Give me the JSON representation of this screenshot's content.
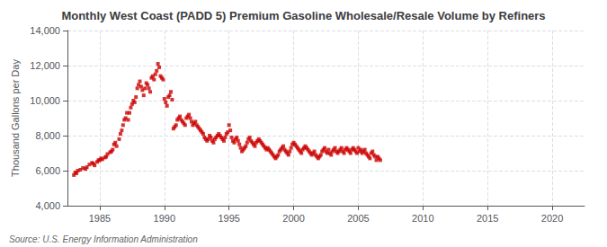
{
  "chart_data": {
    "type": "scatter",
    "title": "Monthly West Coast (PADD 5) Premium Gasoline Wholesale/Resale Volume by Refiners",
    "ylabel": "Thousand Gallons per Day",
    "annotations": [
      "Source: U.S. Energy Information Administration"
    ],
    "color": "#cc0000",
    "marker": "square",
    "grid": true,
    "xlim": [
      1982.5,
      2022.5
    ],
    "xticks": [
      1985,
      1990,
      1995,
      2000,
      2005,
      2010,
      2015,
      2020
    ],
    "ylim": [
      4000,
      14000
    ],
    "yticks": [
      {
        "value": 4000,
        "label": "4,000"
      },
      {
        "value": 6000,
        "label": "6,000"
      },
      {
        "value": 8000,
        "label": "8,000"
      },
      {
        "value": 10000,
        "label": "10,000"
      },
      {
        "value": 12000,
        "label": "12,000"
      },
      {
        "value": 14000,
        "label": "14,000"
      }
    ],
    "x": [
      1983.0,
      1983.1,
      1983.2,
      1983.3,
      1983.5,
      1983.7,
      1983.9,
      1984.0,
      1984.2,
      1984.4,
      1984.5,
      1984.6,
      1984.8,
      1984.9,
      1985.0,
      1985.1,
      1985.2,
      1985.4,
      1985.5,
      1985.6,
      1985.8,
      1985.9,
      1986.0,
      1986.1,
      1986.2,
      1986.3,
      1986.5,
      1986.6,
      1986.7,
      1986.8,
      1986.9,
      1987.0,
      1987.1,
      1987.2,
      1987.3,
      1987.4,
      1987.5,
      1987.6,
      1987.7,
      1987.8,
      1987.9,
      1988.0,
      1988.1,
      1988.2,
      1988.3,
      1988.4,
      1988.5,
      1988.6,
      1988.7,
      1988.8,
      1988.9,
      1989.0,
      1989.1,
      1989.2,
      1989.3,
      1989.4,
      1989.5,
      1989.6,
      1989.7,
      1989.8,
      1989.9,
      1990.0,
      1990.1,
      1990.2,
      1990.3,
      1990.4,
      1990.5,
      1990.6,
      1990.7,
      1990.8,
      1990.9,
      1991.0,
      1991.1,
      1991.2,
      1991.3,
      1991.4,
      1991.5,
      1991.6,
      1991.7,
      1991.8,
      1991.9,
      1992.0,
      1992.1,
      1992.2,
      1992.3,
      1992.4,
      1992.5,
      1992.6,
      1992.7,
      1992.8,
      1992.9,
      1993.0,
      1993.1,
      1993.2,
      1993.3,
      1993.4,
      1993.5,
      1993.6,
      1993.7,
      1993.8,
      1993.9,
      1994.0,
      1994.1,
      1994.2,
      1994.3,
      1994.4,
      1994.5,
      1994.6,
      1994.7,
      1994.8,
      1994.9,
      1995.0,
      1995.1,
      1995.2,
      1995.3,
      1995.4,
      1995.5,
      1995.6,
      1995.7,
      1995.8,
      1995.9,
      1996.0,
      1996.1,
      1996.2,
      1996.3,
      1996.4,
      1996.5,
      1996.6,
      1996.7,
      1996.8,
      1996.9,
      1997.0,
      1997.1,
      1997.2,
      1997.3,
      1997.4,
      1997.5,
      1997.6,
      1997.7,
      1997.8,
      1997.9,
      1998.0,
      1998.1,
      1998.2,
      1998.3,
      1998.4,
      1998.5,
      1998.6,
      1998.7,
      1998.8,
      1998.9,
      1999.0,
      1999.1,
      1999.2,
      1999.3,
      1999.4,
      1999.5,
      1999.6,
      1999.7,
      1999.8,
      1999.9,
      2000.0,
      2000.1,
      2000.2,
      2000.3,
      2000.4,
      2000.5,
      2000.6,
      2000.7,
      2000.8,
      2000.9,
      2001.0,
      2001.1,
      2001.2,
      2001.3,
      2001.4,
      2001.5,
      2001.6,
      2001.7,
      2001.8,
      2001.9,
      2002.0,
      2002.1,
      2002.2,
      2002.3,
      2002.4,
      2002.5,
      2002.6,
      2002.7,
      2002.8,
      2002.9,
      2003.0,
      2003.1,
      2003.2,
      2003.3,
      2003.4,
      2003.5,
      2003.6,
      2003.7,
      2003.8,
      2003.9,
      2004.0,
      2004.1,
      2004.2,
      2004.3,
      2004.4,
      2004.5,
      2004.6,
      2004.7,
      2004.8,
      2004.9,
      2005.0,
      2005.1,
      2005.2,
      2005.3,
      2005.4,
      2005.5,
      2005.6,
      2005.7,
      2005.8,
      2005.9,
      2006.0,
      2006.1,
      2006.2,
      2006.3,
      2006.4,
      2006.5,
      2006.6,
      2006.7
    ],
    "values": [
      5750,
      5900,
      5850,
      6000,
      6050,
      6150,
      6100,
      6200,
      6350,
      6450,
      6400,
      6300,
      6500,
      6600,
      6600,
      6700,
      6650,
      6750,
      6800,
      6950,
      7050,
      7100,
      7200,
      7500,
      7600,
      7400,
      7800,
      8100,
      8300,
      8600,
      8900,
      9000,
      9300,
      8900,
      9300,
      9600,
      9800,
      10000,
      9900,
      10200,
      10700,
      10900,
      11100,
      10800,
      10600,
      10300,
      10700,
      11000,
      10900,
      10700,
      10500,
      11300,
      11400,
      11200,
      11500,
      11700,
      12100,
      11900,
      11400,
      11300,
      11200,
      10100,
      9900,
      9700,
      10200,
      10300,
      10500,
      10050,
      8400,
      8500,
      8600,
      8900,
      9000,
      9100,
      8900,
      8800,
      8700,
      8600,
      9000,
      9100,
      9200,
      9000,
      8800,
      8600,
      8700,
      8800,
      8600,
      8500,
      8400,
      8300,
      8200,
      8100,
      7900,
      7800,
      7700,
      7800,
      8000,
      7900,
      7700,
      7600,
      7800,
      7900,
      8000,
      8100,
      8000,
      7900,
      7800,
      7700,
      7900,
      8100,
      8200,
      8600,
      8300,
      7900,
      7700,
      7600,
      7800,
      7900,
      7700,
      7500,
      7300,
      7100,
      7200,
      7300,
      7400,
      7600,
      7800,
      7900,
      7700,
      7600,
      7500,
      7400,
      7600,
      7700,
      7800,
      7700,
      7600,
      7500,
      7400,
      7300,
      7200,
      7300,
      7200,
      7100,
      7000,
      6900,
      6800,
      6700,
      6800,
      6900,
      7100,
      7200,
      7300,
      7400,
      7200,
      7100,
      7000,
      6900,
      7100,
      7300,
      7500,
      7600,
      7500,
      7400,
      7300,
      7200,
      7100,
      7000,
      7200,
      7300,
      7400,
      7300,
      7200,
      7100,
      7000,
      6900,
      7000,
      7100,
      6900,
      6800,
      6700,
      6800,
      6900,
      7100,
      7200,
      7300,
      7100,
      7000,
      7200,
      7000,
      6900,
      7100,
      7200,
      7300,
      7100,
      7000,
      7100,
      7200,
      7300,
      7100,
      7000,
      7200,
      7300,
      7200,
      7100,
      7000,
      7200,
      7300,
      7200,
      7100,
      7000,
      7300,
      7100,
      7200,
      7000,
      7100,
      7200,
      7000,
      6900,
      6800,
      6700,
      7000,
      7100,
      6900,
      6800,
      6600,
      6800,
      6700,
      6600
    ]
  }
}
